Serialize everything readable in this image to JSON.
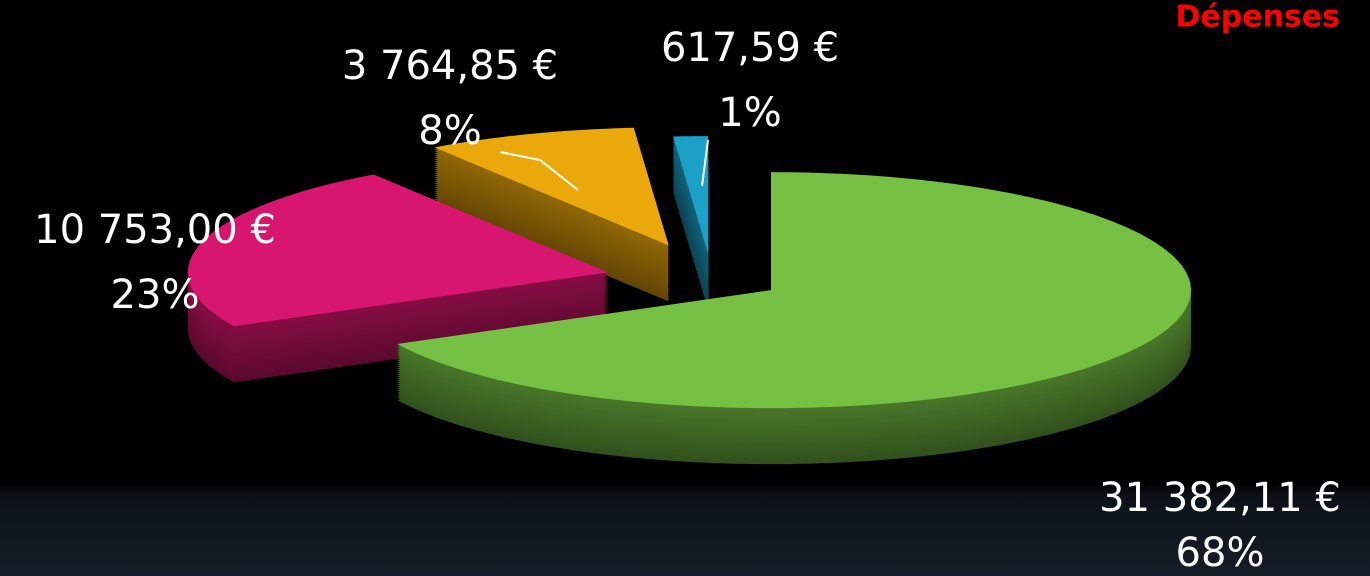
{
  "chart_data": {
    "type": "pie",
    "title": "Dépenses",
    "values": [
      31382.11,
      10753.0,
      3764.85,
      617.59
    ],
    "value_labels": [
      "31 382,11 €",
      "10 753,00 €",
      "3 764,85 €",
      "617,59 €"
    ],
    "percentages": [
      68,
      23,
      8,
      1
    ],
    "percentage_labels": [
      "68%",
      "23%",
      "8%",
      "1%"
    ],
    "colors": [
      "#76c043",
      "#d9166f",
      "#eba80a",
      "#1ca0c8"
    ]
  }
}
